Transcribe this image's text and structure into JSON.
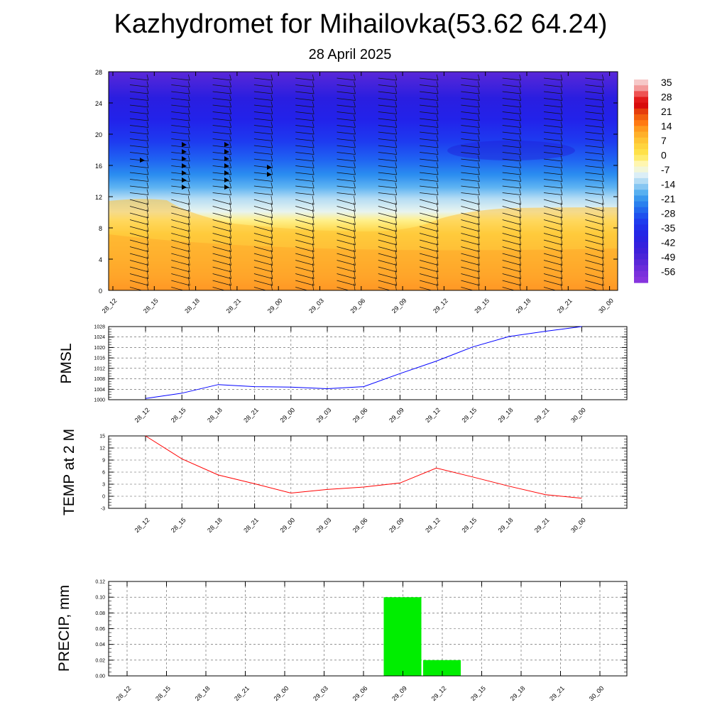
{
  "figure": {
    "title": "Kazhydromet for Mihailovka(53.62 64.24)",
    "subtitle": "28 April 2025"
  },
  "colors": {
    "pmsl_line": "#0000ff",
    "temp_line": "#ff0000",
    "precip_bar": "#00ee00",
    "grid": "#555555"
  },
  "chart_data": [
    {
      "id": "cross-section",
      "type": "heatmap",
      "title": "",
      "ylabel": "",
      "x_labels": [
        "28_12",
        "28_15",
        "28_18",
        "28_21",
        "29_00",
        "29_03",
        "29_06",
        "29_09",
        "29_12",
        "29_15",
        "29_18",
        "29_21",
        "30_00"
      ],
      "y_ticks": [
        0,
        4,
        8,
        12,
        16,
        20,
        24,
        28
      ],
      "ylim": [
        0,
        28
      ],
      "colorbar_labels": [
        "35",
        "28",
        "21",
        "14",
        "7",
        "0",
        "-7",
        "-14",
        "-21",
        "-28",
        "-35",
        "-42",
        "-49",
        "-56"
      ],
      "wind_barbs": true
    },
    {
      "id": "pmsl",
      "type": "line",
      "ylabel": "PMSL",
      "x_labels": [
        "28_12",
        "28_15",
        "28_18",
        "28_21",
        "29_00",
        "29_03",
        "29_06",
        "29_09",
        "29_12",
        "29_15",
        "29_18",
        "29_21",
        "30_00"
      ],
      "values": [
        1000.5,
        1002.5,
        1005.8,
        1005.0,
        1004.8,
        1004.2,
        1005.0,
        1010.0,
        1014.8,
        1020.2,
        1024.2,
        1026.2,
        1028.0
      ],
      "ylim": [
        1000,
        1028
      ],
      "y_ticks": [
        "1000",
        "1004",
        "1008",
        "1012",
        "1016",
        "1020",
        "1024",
        "1028"
      ]
    },
    {
      "id": "temp",
      "type": "line",
      "ylabel": "TEMP at 2 M",
      "x_labels": [
        "28_12",
        "28_15",
        "28_18",
        "28_21",
        "29_00",
        "29_03",
        "29_06",
        "29_09",
        "29_12",
        "29_15",
        "29_18",
        "29_21",
        "30_00"
      ],
      "values": [
        15.0,
        9.3,
        5.3,
        3.1,
        0.8,
        1.7,
        2.3,
        3.3,
        7.0,
        4.8,
        2.5,
        0.4,
        -0.5
      ],
      "ylim": [
        -3,
        15
      ],
      "y_ticks": [
        "-3",
        "0",
        "3",
        "6",
        "9",
        "12",
        "15"
      ]
    },
    {
      "id": "precip",
      "type": "bar",
      "ylabel": "PRECIP, mm",
      "x_labels": [
        "28_12",
        "28_15",
        "28_18",
        "28_21",
        "29_00",
        "29_03",
        "29_06",
        "29_09",
        "29_12",
        "29_15",
        "29_18",
        "29_21",
        "30_00"
      ],
      "values": [
        0,
        0,
        0,
        0,
        0,
        0,
        0,
        0.1,
        0.02,
        0,
        0,
        0,
        0
      ],
      "ylim": [
        0,
        0.12
      ],
      "y_ticks": [
        "0.00",
        "0.02",
        "0.04",
        "0.06",
        "0.08",
        "0.10",
        "0.12"
      ]
    }
  ]
}
